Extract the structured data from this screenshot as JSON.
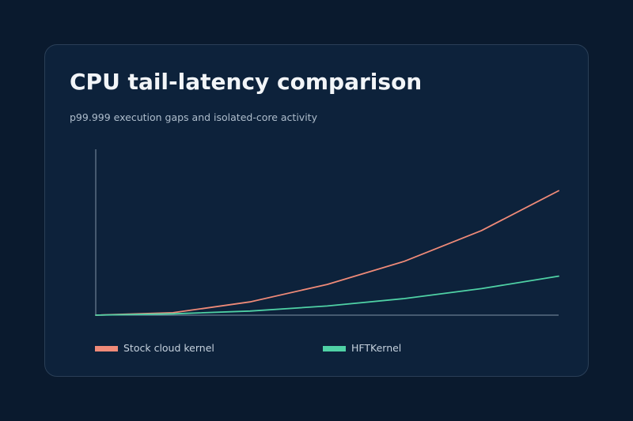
{
  "title": "CPU tail-latency comparison",
  "subtitle": "p99.999 execution gaps and isolated-core activity",
  "colors": {
    "background": "#0a1a2e",
    "card": "#0d223b",
    "axis": "#7f93a6",
    "stock": "#ef8a78",
    "hft": "#4fd1a5"
  },
  "chart_data": {
    "type": "line",
    "title": "CPU tail-latency comparison",
    "subtitle": "p99.999 execution gaps and isolated-core activity",
    "xlabel": "",
    "ylabel": "",
    "grid": false,
    "legend_position": "bottom",
    "x": [
      0,
      1,
      2,
      3,
      4,
      5,
      6
    ],
    "xlim": [
      0,
      6
    ],
    "ylim": [
      0,
      100
    ],
    "series": [
      {
        "name": "Stock cloud kernel",
        "color": "#ef8a78",
        "values": [
          0,
          1.5,
          8,
          18.5,
          32.5,
          51,
          75
        ]
      },
      {
        "name": "HFTKernel",
        "color": "#4fd1a5",
        "values": [
          0,
          0.8,
          2.5,
          5.5,
          10,
          16,
          23.5
        ]
      }
    ]
  }
}
